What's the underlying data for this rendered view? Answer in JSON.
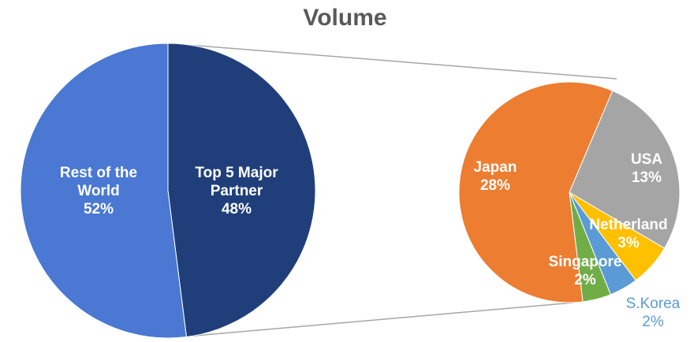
{
  "chart_data": [
    {
      "type": "pie",
      "title": "Volume",
      "categories": [
        "Top 5 Major Partner",
        "Rest of the World"
      ],
      "values": [
        48,
        52
      ],
      "value_labels": [
        "48%",
        "52%"
      ],
      "colors": [
        "#203f7a",
        "#4a78d2"
      ]
    },
    {
      "type": "pie",
      "categories": [
        "USA",
        "Netherland",
        "S.Korea",
        "Singapore",
        "Japan"
      ],
      "values": [
        13,
        3,
        2,
        2,
        28
      ],
      "value_labels": [
        "13%",
        "3%",
        "2%",
        "2%",
        "28%"
      ],
      "colors": [
        "#a5a5a5",
        "#ffc000",
        "#5b9bd5",
        "#70ad47",
        "#ed7d31"
      ]
    }
  ]
}
